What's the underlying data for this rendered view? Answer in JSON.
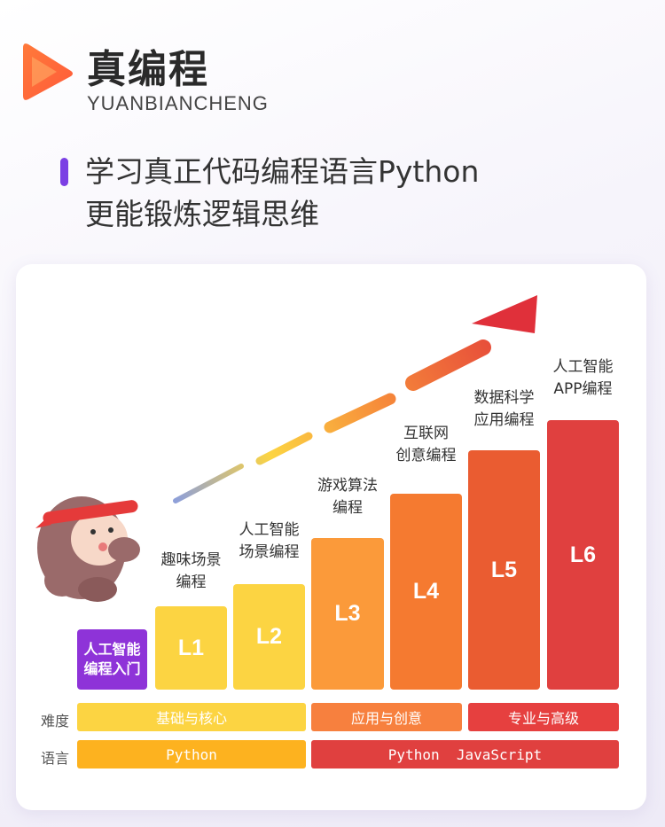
{
  "brand": {
    "title": "真编程",
    "subtitle": "YUANBIANCHENG"
  },
  "headline": {
    "line1": "学习真正代码编程语言Python",
    "line2": "更能锻炼逻辑思维"
  },
  "levels": [
    {
      "bar_text": "人工智能\n编程入门",
      "label": ""
    },
    {
      "bar_text": "L1",
      "label": "趣味场景\n编程"
    },
    {
      "bar_text": "L2",
      "label": "人工智能\n场景编程"
    },
    {
      "bar_text": "L3",
      "label": "游戏算法\n编程"
    },
    {
      "bar_text": "L4",
      "label": "互联网\n创意编程"
    },
    {
      "bar_text": "L5",
      "label": "数据科学\n应用编程"
    },
    {
      "bar_text": "L6",
      "label": "人工智能\nAPP编程"
    }
  ],
  "rows": {
    "difficulty": {
      "label": "难度",
      "items": [
        "基础与核心",
        "应用与创意",
        "专业与高级"
      ]
    },
    "language": {
      "label": "语言",
      "items": [
        "Python",
        "Python  JavaScript"
      ]
    }
  },
  "colors": {
    "accent": "#7b3fe4",
    "intro": "#8e33d8",
    "yellow": "#fcd442",
    "orange_light": "#fb9a3a",
    "orange": "#f57a30",
    "orange_red": "#ea5c31",
    "red": "#e0403f",
    "python_pill": "#fdb21f",
    "difficulty_basic": "#fcd442",
    "difficulty_app": "#f7803e",
    "difficulty_pro": "#e6403f"
  }
}
